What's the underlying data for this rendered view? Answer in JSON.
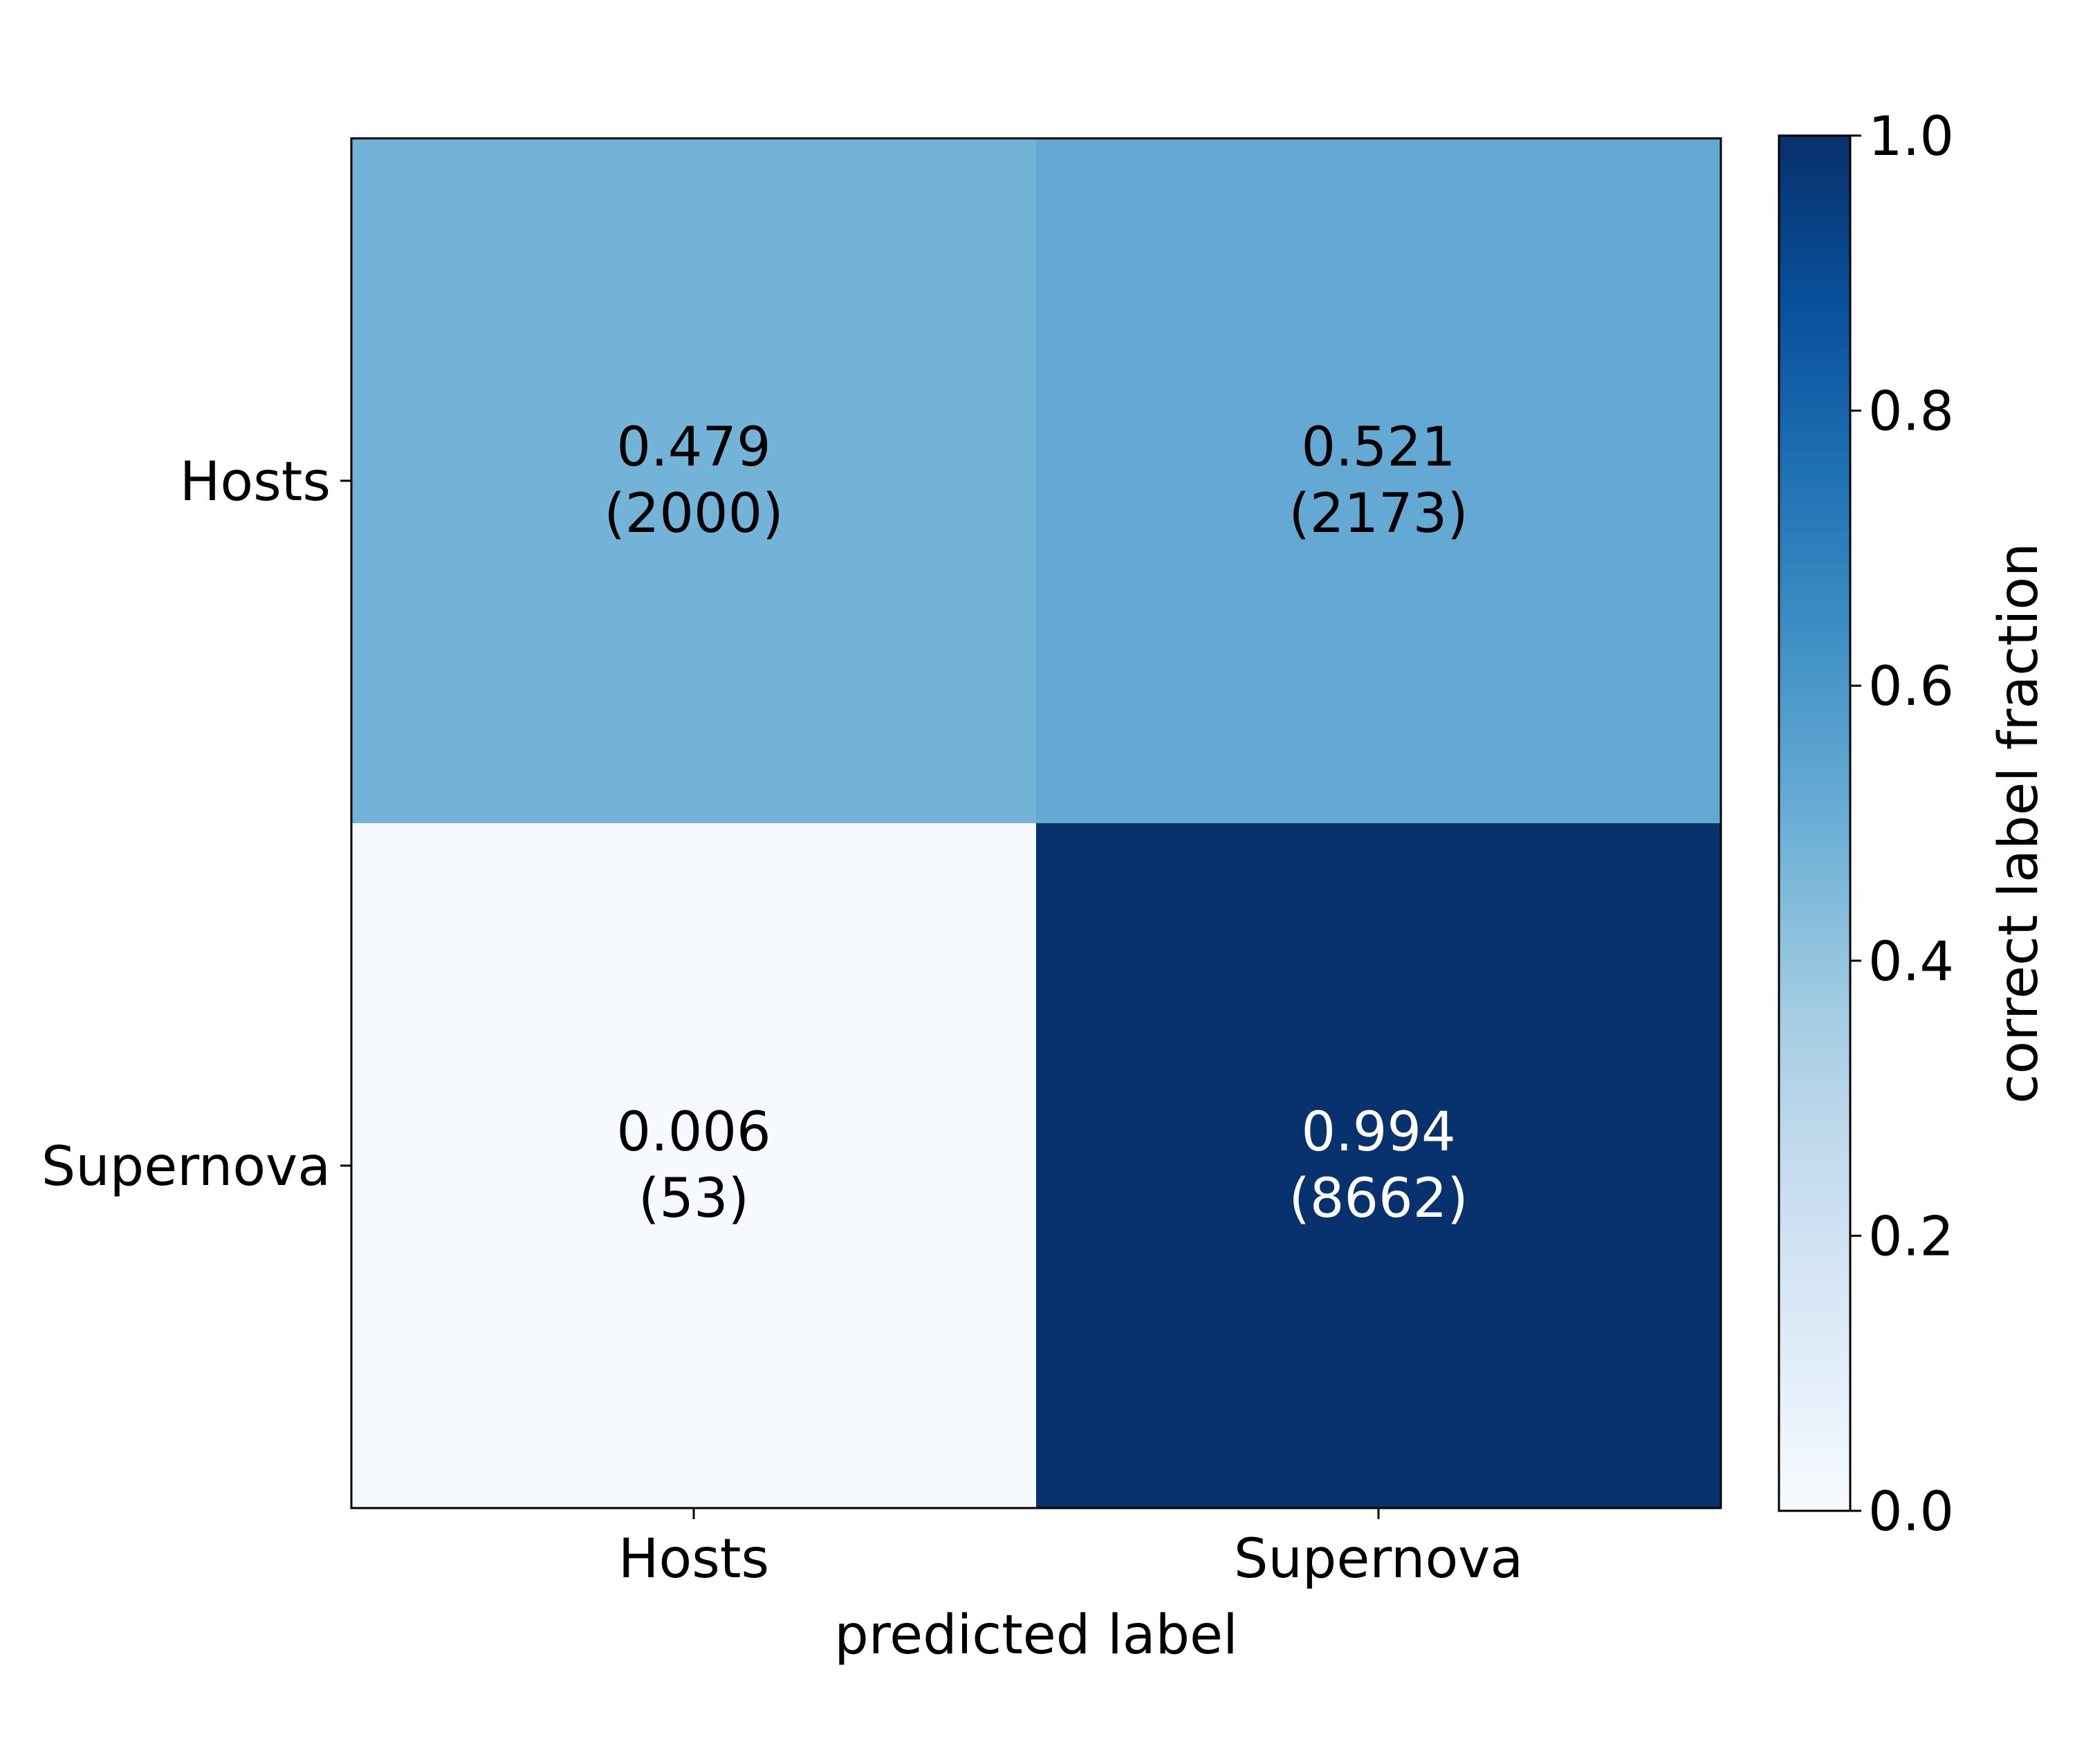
{
  "chart_data": {
    "type": "heatmap",
    "title": "",
    "xlabel": "predicted label",
    "ylabel": "",
    "x_categories": [
      "Hosts",
      "Supernova"
    ],
    "y_categories": [
      "Hosts",
      "Supernova"
    ],
    "fractions": [
      [
        0.479,
        0.521
      ],
      [
        0.006,
        0.994
      ]
    ],
    "cell_labels": [
      [
        {
          "value": "0.479",
          "count": "(2000)"
        },
        {
          "value": "0.521",
          "count": "(2173)"
        }
      ],
      [
        {
          "value": "0.006",
          "count": "(53)"
        },
        {
          "value": "0.994",
          "count": "(8662)"
        }
      ]
    ],
    "colorbar": {
      "label": "correct label fraction",
      "range": [
        0.0,
        1.0
      ],
      "ticks": [
        "0.0",
        "0.2",
        "0.4",
        "0.6",
        "0.8",
        "1.0"
      ],
      "colormap": "Blues"
    },
    "grid": false
  }
}
